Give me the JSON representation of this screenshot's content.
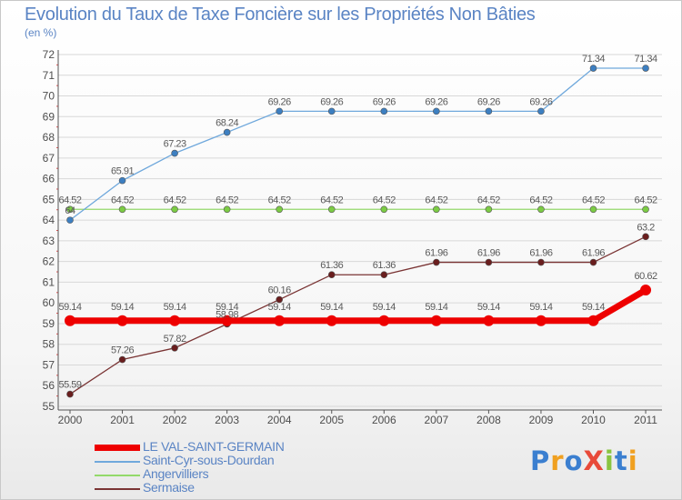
{
  "title": "Evolution du Taux de Taxe Foncière sur les Propriétés Non Bâties",
  "unit_label": "(en %)",
  "logo": "ProXiti",
  "colors": {
    "title": "#5a84c4",
    "axis": "#555555",
    "grid": "#d8d8d8",
    "redtick": "#e05050"
  },
  "chart_data": {
    "type": "line",
    "title": "Evolution du Taux de Taxe Foncière sur les Propriétés Non Bâties",
    "ylabel": "(en %)",
    "xlabel": "",
    "x": [
      "2000",
      "2001",
      "2002",
      "2003",
      "2004",
      "2005",
      "2006",
      "2007",
      "2008",
      "2009",
      "2010",
      "2011"
    ],
    "ylim": [
      55,
      72
    ],
    "yticks": [
      55,
      56,
      57,
      58,
      59,
      60,
      61,
      62,
      63,
      64,
      65,
      66,
      67,
      68,
      69,
      70,
      71,
      72
    ],
    "grid": "horizontal",
    "legend_position": "bottom-left",
    "series": [
      {
        "name": "LE VAL-SAINT-GERMAIN",
        "color": "#ee0000",
        "marker_fill": "#ee0000",
        "width": 7,
        "marker_r": 6,
        "values": [
          59.14,
          59.14,
          59.14,
          59.14,
          59.14,
          59.14,
          59.14,
          59.14,
          59.14,
          59.14,
          59.14,
          60.62
        ],
        "labels": [
          "59.14",
          "59.14",
          "59.14",
          "59.14",
          "59.14",
          "59.14",
          "59.14",
          "59.14",
          "59.14",
          "59.14",
          "59.14",
          "60.62"
        ]
      },
      {
        "name": "Saint-Cyr-sous-Dourdan",
        "color": "#6fa8dc",
        "marker_fill": "#3d7fc1",
        "width": 1.3,
        "marker_r": 3.5,
        "values": [
          64.0,
          65.91,
          67.23,
          68.24,
          69.26,
          69.26,
          69.26,
          69.26,
          69.26,
          69.26,
          71.34,
          71.34
        ],
        "labels": [
          "64",
          "65.91",
          "67.23",
          "68.24",
          "69.26",
          "69.26",
          "69.26",
          "69.26",
          "69.26",
          "69.26",
          "71.34",
          "71.34"
        ]
      },
      {
        "name": "Angervilliers",
        "color": "#93d96a",
        "marker_fill": "#7ccc44",
        "width": 1.3,
        "marker_r": 3.5,
        "values": [
          64.52,
          64.52,
          64.52,
          64.52,
          64.52,
          64.52,
          64.52,
          64.52,
          64.52,
          64.52,
          64.52,
          64.52
        ],
        "labels": [
          "64.52",
          "64.52",
          "64.52",
          "64.52",
          "64.52",
          "64.52",
          "64.52",
          "64.52",
          "64.52",
          "64.52",
          "64.52",
          "64.52"
        ]
      },
      {
        "name": "Sermaise",
        "color": "#7a3434",
        "marker_fill": "#6a1e1e",
        "width": 1.3,
        "marker_r": 3.5,
        "values": [
          55.59,
          57.26,
          57.82,
          58.98,
          60.16,
          61.36,
          61.36,
          61.96,
          61.96,
          61.96,
          61.96,
          63.2
        ],
        "labels": [
          "55.59",
          "57.26",
          "57.82",
          "58.98",
          "60.16",
          "61.36",
          "61.36",
          "61.96",
          "61.96",
          "61.96",
          "61.96",
          "63.2"
        ]
      }
    ]
  }
}
